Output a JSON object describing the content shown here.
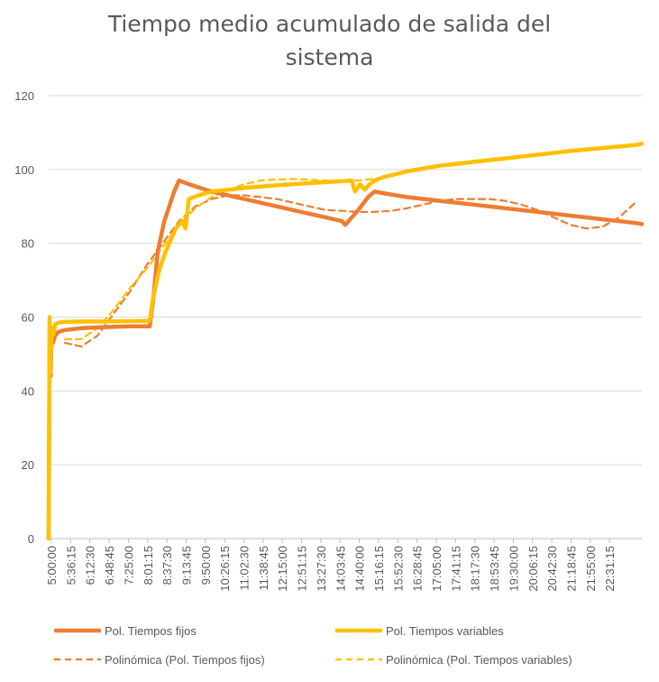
{
  "chart_data": {
    "type": "line",
    "title_lines": [
      "Tiempo medio acumulado de salida del",
      "sistema"
    ],
    "xlabel": "",
    "ylabel": "",
    "ylim": [
      0,
      120
    ],
    "yticks": [
      0,
      20,
      40,
      60,
      80,
      100,
      120
    ],
    "grid": true,
    "legend_position": "bottom",
    "x_tick_labels": [
      "5:00:00",
      "5:36:15",
      "6:12:30",
      "6:48:45",
      "7:25:00",
      "8:01:15",
      "8:37:30",
      "9:13:45",
      "9:50:00",
      "10:26:15",
      "11:02:30",
      "11:38:45",
      "12:15:00",
      "12:51:15",
      "13:27:30",
      "14:03:45",
      "14:40:00",
      "15:16:15",
      "15:52:30",
      "16:28:45",
      "17:05:00",
      "17:41:15",
      "18:17:30",
      "18:53:45",
      "19:30:00",
      "20:06:15",
      "20:42:30",
      "21:18:45",
      "21:55:00",
      "22:31:15"
    ],
    "x_range_hours": [
      5.0,
      23.2
    ],
    "series": [
      {
        "name": "Pol. Tiempos fijos",
        "color": "#ED7D31",
        "style": "solid",
        "x": [
          5.0,
          5.03,
          5.06,
          5.09,
          5.13,
          5.2,
          5.3,
          5.5,
          6.0,
          6.8,
          7.5,
          8.1,
          8.2,
          8.35,
          8.55,
          8.85,
          9.0,
          9.3,
          10.0,
          11.0,
          12.0,
          13.0,
          14.0,
          14.1,
          14.5,
          14.8,
          15.0,
          15.3,
          16.0,
          17.0,
          18.0,
          19.0,
          20.0,
          21.0,
          22.0,
          23.0,
          23.2
        ],
        "y": [
          0,
          58,
          44,
          55,
          53,
          55,
          56,
          56.5,
          57,
          57.3,
          57.5,
          57.5,
          64,
          78,
          86,
          94,
          97,
          96,
          94,
          92,
          90,
          88,
          86,
          85,
          89,
          92.5,
          94,
          93.5,
          92.5,
          91.5,
          90.5,
          89.5,
          88.5,
          87.5,
          86.5,
          85.5,
          85.2
        ]
      },
      {
        "name": "Pol. Tiempos variables",
        "color": "#FFC000",
        "style": "solid",
        "x": [
          5.0,
          5.03,
          5.06,
          5.09,
          5.13,
          5.2,
          5.3,
          5.5,
          6.0,
          6.8,
          7.5,
          8.1,
          8.2,
          8.4,
          8.6,
          8.9,
          9.1,
          9.2,
          9.3,
          9.6,
          10.0,
          11.0,
          12.0,
          13.0,
          14.0,
          14.3,
          14.4,
          14.55,
          14.7,
          14.85,
          15.0,
          15.3,
          16.0,
          17.0,
          18.0,
          19.0,
          20.0,
          21.0,
          22.0,
          23.0,
          23.2
        ],
        "y": [
          0,
          60,
          45,
          57,
          55,
          58,
          58.5,
          58.7,
          58.8,
          58.8,
          58.9,
          59,
          65,
          73,
          78,
          84,
          86,
          84,
          92,
          93,
          94,
          95,
          95.7,
          96.3,
          96.8,
          97,
          94,
          96,
          94.5,
          96,
          97,
          98,
          99.5,
          101,
          102,
          103,
          104,
          105,
          105.8,
          106.6,
          107
        ]
      },
      {
        "name": "Polinómica (Pol. Tiempos fijos)",
        "color": "#ED7D31",
        "style": "dashed",
        "x": [
          5.5,
          6.0,
          6.5,
          7.0,
          7.5,
          8.0,
          8.5,
          9.0,
          9.5,
          10.0,
          10.5,
          11.0,
          11.5,
          12.0,
          12.5,
          13.0,
          13.5,
          14.0,
          14.5,
          15.0,
          15.5,
          16.0,
          16.5,
          17.0,
          17.5,
          18.0,
          18.5,
          19.0,
          19.5,
          20.0,
          20.5,
          21.0,
          21.5,
          22.0,
          22.5,
          23.0
        ],
        "y": [
          53,
          52,
          55,
          61,
          67,
          74,
          80,
          86,
          90,
          92,
          93,
          93,
          92.5,
          92,
          91,
          90,
          89,
          88.8,
          88.5,
          88.5,
          88.8,
          89.5,
          90.5,
          91.5,
          92,
          92,
          92,
          91.5,
          90.5,
          89,
          87,
          85,
          84,
          84.5,
          87,
          91
        ]
      },
      {
        "name": "Polinómica (Pol. Tiempos variables)",
        "color": "#FFC000",
        "style": "dashed",
        "x": [
          5.5,
          6.0,
          6.5,
          7.0,
          7.5,
          8.0,
          8.5,
          9.0,
          9.5,
          10.0,
          10.5,
          11.0,
          11.5,
          12.0,
          12.5,
          13.0,
          13.5,
          14.0,
          14.5,
          15.0,
          15.5,
          16.0,
          16.5,
          17.0,
          17.5,
          18.0,
          18.5,
          19.0,
          19.5,
          20.0,
          20.5,
          21.0,
          21.5,
          22.0,
          22.5,
          23.0
        ],
        "y": [
          54,
          54,
          57,
          62,
          68,
          73,
          79,
          85,
          89.5,
          92.5,
          94.5,
          96,
          97,
          97.3,
          97.4,
          97.2,
          97,
          96.8,
          97,
          97.5,
          98.3,
          99.3,
          100.2,
          101,
          101.7,
          102.3,
          102.8,
          103.2,
          103.6,
          104,
          104.4,
          104.8,
          105.3,
          105.8,
          106.3,
          106.8
        ]
      }
    ]
  }
}
